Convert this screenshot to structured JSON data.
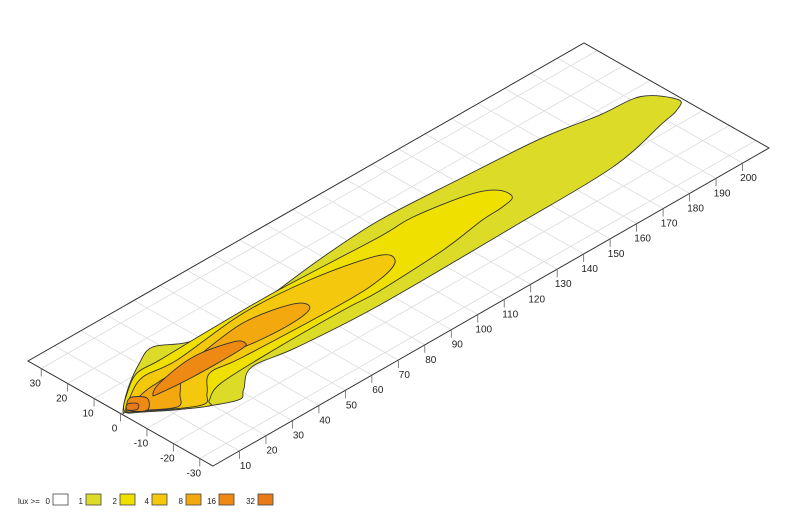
{
  "chart_data": {
    "type": "contour",
    "title": "",
    "xlabel": "",
    "ylabel": "",
    "xlim": [
      0,
      210
    ],
    "ylim": [
      -35,
      35
    ],
    "grid": true,
    "x_ticks": [
      10,
      20,
      30,
      40,
      50,
      60,
      70,
      80,
      90,
      100,
      110,
      120,
      130,
      140,
      150,
      160,
      170,
      180,
      190,
      200
    ],
    "y_ticks": [
      30,
      20,
      10,
      0,
      -10,
      -20,
      -30
    ],
    "legend": {
      "placement": "bottom-left",
      "title": "lux >=",
      "levels": [
        {
          "label": "0",
          "color": "#ffffff"
        },
        {
          "label": "1",
          "color": "#dcdc28"
        },
        {
          "label": "2",
          "color": "#f0e000"
        },
        {
          "label": "4",
          "color": "#f4c80c"
        },
        {
          "label": "8",
          "color": "#f4a810"
        },
        {
          "label": "16",
          "color": "#ee8a14"
        },
        {
          "label": "32",
          "color": "#e97a18"
        }
      ]
    },
    "contours": [
      {
        "level": 1,
        "color": "#dcdc28",
        "points": [
          [
            1,
            0
          ],
          [
            9,
            6.4
          ],
          [
            20,
            13
          ],
          [
            28,
            16
          ],
          [
            36,
            11
          ],
          [
            49,
            8
          ],
          [
            70,
            11
          ],
          [
            90,
            13.5
          ],
          [
            113,
            15
          ],
          [
            141,
            13.5
          ],
          [
            170,
            11.5
          ],
          [
            189,
            8.1
          ],
          [
            203,
            6.4
          ],
          [
            209,
            -1.8
          ],
          [
            205,
            -5
          ],
          [
            198,
            -6.6
          ],
          [
            174,
            -11.7
          ],
          [
            136,
            -12.6
          ],
          [
            85,
            -13.2
          ],
          [
            55,
            -11.5
          ],
          [
            40,
            -9.5
          ],
          [
            31,
            -15.5
          ],
          [
            26,
            -17.7
          ],
          [
            12,
            -9.6
          ],
          [
            2.3,
            -1.3
          ]
        ]
      },
      {
        "level": 2,
        "color": "#f0e000",
        "points": [
          [
            1.5,
            0
          ],
          [
            8,
            5.5
          ],
          [
            16.5,
            10.3
          ],
          [
            25,
            10.3
          ],
          [
            44.5,
            10.8
          ],
          [
            70,
            11
          ],
          [
            107,
            9.5
          ],
          [
            120,
            9.7
          ],
          [
            138,
            6.5
          ],
          [
            145,
            2.5
          ],
          [
            145.5,
            -2.5
          ],
          [
            140,
            -4
          ],
          [
            132,
            -4.5
          ],
          [
            115,
            -7
          ],
          [
            89,
            -8.5
          ],
          [
            77,
            -8
          ],
          [
            51,
            -8
          ],
          [
            29,
            -9
          ],
          [
            21,
            -12.5
          ],
          [
            18.5,
            -14
          ],
          [
            4.7,
            -3.8
          ]
        ]
      },
      {
        "level": 4,
        "color": "#f4c80c",
        "points": [
          [
            2,
            0
          ],
          [
            7.3,
            3.7
          ],
          [
            16.3,
            7.9
          ],
          [
            28.3,
            7
          ],
          [
            56,
            10
          ],
          [
            80,
            8.4
          ],
          [
            100.5,
            3.6
          ],
          [
            102.5,
            -1.2
          ],
          [
            94.6,
            -4.5
          ],
          [
            78.5,
            -5.6
          ],
          [
            41.7,
            -4.5
          ],
          [
            30.3,
            -3.5
          ],
          [
            23,
            -9.7
          ],
          [
            17.7,
            -12.5
          ],
          [
            3,
            -2
          ]
        ]
      },
      {
        "level": 8,
        "color": "#f4a810",
        "points": [
          [
            2.5,
            0
          ],
          [
            11,
            2.5
          ],
          [
            17,
            3.2
          ],
          [
            31,
            4
          ],
          [
            53,
            6.8
          ],
          [
            68.7,
            3.6
          ],
          [
            70.9,
            -0.6
          ],
          [
            64.2,
            -2.5
          ],
          [
            50.6,
            -2.1
          ],
          [
            34.5,
            0.5
          ],
          [
            25.2,
            1.2
          ],
          [
            18,
            -4.5
          ],
          [
            12.8,
            -8.6
          ],
          [
            3.5,
            -1.5
          ]
        ]
      },
      {
        "level": 16,
        "color": "#ee8a14",
        "points": [
          [
            12.2,
            0
          ],
          [
            17.5,
            2.7
          ],
          [
            32.3,
            5
          ],
          [
            44.9,
            2.4
          ],
          [
            46.8,
            -0.3
          ],
          [
            43.5,
            -1.6
          ],
          [
            25.7,
            -1.6
          ],
          [
            14.2,
            -0.7
          ]
        ]
      },
      {
        "level": 16,
        "color": "#ee8a14",
        "points": [
          [
            2.6,
            -0.3
          ],
          [
            6.9,
            3.4
          ],
          [
            10.1,
            0.1
          ],
          [
            6.2,
            -3.9
          ]
        ]
      },
      {
        "level": 32,
        "color": "#e97a18",
        "points": [
          [
            2.5,
            0
          ],
          [
            4.5,
            1.8
          ],
          [
            6.5,
            0
          ],
          [
            4.5,
            -1.8
          ]
        ]
      }
    ]
  }
}
